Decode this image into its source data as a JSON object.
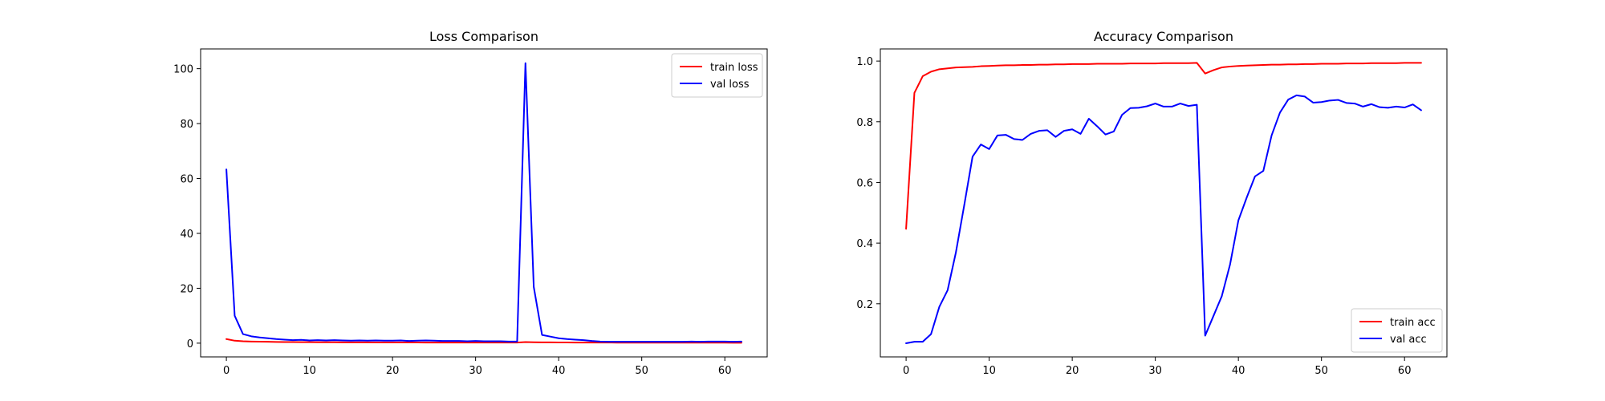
{
  "chart_data": [
    {
      "type": "line",
      "title": "Loss Comparison",
      "xlabel": "",
      "ylabel": "",
      "xlim": [
        -3.1,
        65.1
      ],
      "ylim": [
        -5,
        107.2
      ],
      "xticks": [
        0,
        10,
        20,
        30,
        40,
        50,
        60
      ],
      "yticks": [
        0,
        20,
        40,
        60,
        80,
        100
      ],
      "grid": false,
      "legend_position": "top-right",
      "series": [
        {
          "name": "train loss",
          "color": "#ff0000",
          "x": [
            0,
            1,
            2,
            3,
            4,
            5,
            6,
            7,
            8,
            9,
            10,
            11,
            12,
            13,
            14,
            15,
            16,
            17,
            18,
            19,
            20,
            21,
            22,
            23,
            24,
            25,
            26,
            27,
            28,
            29,
            30,
            31,
            32,
            33,
            34,
            35,
            36,
            37,
            38,
            39,
            40,
            41,
            42,
            43,
            44,
            45,
            46,
            47,
            48,
            49,
            50,
            51,
            52,
            53,
            54,
            55,
            56,
            57,
            58,
            59,
            60,
            61,
            62
          ],
          "values": [
            1.5,
            0.9,
            0.7,
            0.6,
            0.55,
            0.5,
            0.45,
            0.42,
            0.4,
            0.38,
            0.36,
            0.34,
            0.33,
            0.32,
            0.31,
            0.3,
            0.29,
            0.28,
            0.27,
            0.27,
            0.26,
            0.26,
            0.25,
            0.25,
            0.24,
            0.24,
            0.24,
            0.23,
            0.23,
            0.23,
            0.22,
            0.22,
            0.22,
            0.21,
            0.21,
            0.21,
            0.4,
            0.35,
            0.3,
            0.28,
            0.26,
            0.25,
            0.24,
            0.23,
            0.22,
            0.21,
            0.21,
            0.2,
            0.2,
            0.2,
            0.19,
            0.19,
            0.19,
            0.18,
            0.18,
            0.18,
            0.18,
            0.17,
            0.17,
            0.17,
            0.17,
            0.16,
            0.16
          ]
        },
        {
          "name": "val loss",
          "color": "#0000ff",
          "x": [
            0,
            1,
            2,
            3,
            4,
            5,
            6,
            7,
            8,
            9,
            10,
            11,
            12,
            13,
            14,
            15,
            16,
            17,
            18,
            19,
            20,
            21,
            22,
            23,
            24,
            25,
            26,
            27,
            28,
            29,
            30,
            31,
            32,
            33,
            34,
            35,
            36,
            37,
            38,
            39,
            40,
            41,
            42,
            43,
            44,
            45,
            46,
            47,
            48,
            49,
            50,
            51,
            52,
            53,
            54,
            55,
            56,
            57,
            58,
            59,
            60,
            61,
            62
          ],
          "values": [
            63.3,
            10,
            3.3,
            2.5,
            2.1,
            1.8,
            1.5,
            1.3,
            1.1,
            1.2,
            1.0,
            1.1,
            1.0,
            1.1,
            1.0,
            0.9,
            1.0,
            0.9,
            1.0,
            0.9,
            0.9,
            1.0,
            0.8,
            0.9,
            1.0,
            0.9,
            0.8,
            0.8,
            0.8,
            0.7,
            0.8,
            0.7,
            0.7,
            0.7,
            0.6,
            0.6,
            102,
            20.5,
            3,
            2.4,
            1.8,
            1.5,
            1.3,
            1.1,
            0.8,
            0.6,
            0.5,
            0.5,
            0.5,
            0.5,
            0.5,
            0.5,
            0.5,
            0.5,
            0.5,
            0.5,
            0.6,
            0.5,
            0.6,
            0.6,
            0.6,
            0.5,
            0.6
          ]
        }
      ]
    },
    {
      "type": "line",
      "title": "Accuracy Comparison",
      "xlabel": "",
      "ylabel": "",
      "xlim": [
        -3.1,
        65.1
      ],
      "ylim": [
        0.025,
        1.04
      ],
      "xticks": [
        0,
        10,
        20,
        30,
        40,
        50,
        60
      ],
      "yticks": [
        0.2,
        0.4,
        0.6,
        0.8,
        1.0
      ],
      "grid": false,
      "legend_position": "bottom-right",
      "series": [
        {
          "name": "train acc",
          "color": "#ff0000",
          "x": [
            0,
            1,
            2,
            3,
            4,
            5,
            6,
            7,
            8,
            9,
            10,
            11,
            12,
            13,
            14,
            15,
            16,
            17,
            18,
            19,
            20,
            21,
            22,
            23,
            24,
            25,
            26,
            27,
            28,
            29,
            30,
            31,
            32,
            33,
            34,
            35,
            36,
            37,
            38,
            39,
            40,
            41,
            42,
            43,
            44,
            45,
            46,
            47,
            48,
            49,
            50,
            51,
            52,
            53,
            54,
            55,
            56,
            57,
            58,
            59,
            60,
            61,
            62
          ],
          "values": [
            0.447,
            0.895,
            0.95,
            0.965,
            0.973,
            0.976,
            0.979,
            0.98,
            0.981,
            0.983,
            0.984,
            0.985,
            0.986,
            0.986,
            0.987,
            0.987,
            0.988,
            0.988,
            0.989,
            0.989,
            0.99,
            0.99,
            0.99,
            0.991,
            0.991,
            0.991,
            0.991,
            0.992,
            0.992,
            0.992,
            0.992,
            0.993,
            0.993,
            0.993,
            0.993,
            0.994,
            0.959,
            0.97,
            0.979,
            0.982,
            0.984,
            0.985,
            0.986,
            0.987,
            0.988,
            0.988,
            0.989,
            0.989,
            0.99,
            0.99,
            0.991,
            0.991,
            0.991,
            0.992,
            0.992,
            0.992,
            0.993,
            0.993,
            0.993,
            0.993,
            0.994,
            0.994,
            0.994
          ]
        },
        {
          "name": "val acc",
          "color": "#0000ff",
          "x": [
            0,
            1,
            2,
            3,
            4,
            5,
            6,
            7,
            8,
            9,
            10,
            11,
            12,
            13,
            14,
            15,
            16,
            17,
            18,
            19,
            20,
            21,
            22,
            23,
            24,
            25,
            26,
            27,
            28,
            29,
            30,
            31,
            32,
            33,
            34,
            35,
            36,
            37,
            38,
            39,
            40,
            41,
            42,
            43,
            44,
            45,
            46,
            47,
            48,
            49,
            50,
            51,
            52,
            53,
            54,
            55,
            56,
            57,
            58,
            59,
            60,
            61,
            62
          ],
          "values": [
            0.07,
            0.075,
            0.075,
            0.1,
            0.19,
            0.245,
            0.37,
            0.525,
            0.685,
            0.725,
            0.71,
            0.755,
            0.757,
            0.743,
            0.74,
            0.76,
            0.77,
            0.772,
            0.75,
            0.77,
            0.775,
            0.76,
            0.81,
            0.785,
            0.758,
            0.768,
            0.823,
            0.845,
            0.846,
            0.851,
            0.86,
            0.85,
            0.85,
            0.86,
            0.852,
            0.856,
            0.095,
            0.16,
            0.225,
            0.33,
            0.475,
            0.55,
            0.62,
            0.638,
            0.755,
            0.83,
            0.873,
            0.887,
            0.883,
            0.863,
            0.865,
            0.87,
            0.872,
            0.862,
            0.86,
            0.85,
            0.858,
            0.848,
            0.846,
            0.85,
            0.847,
            0.857,
            0.838
          ]
        }
      ]
    }
  ]
}
